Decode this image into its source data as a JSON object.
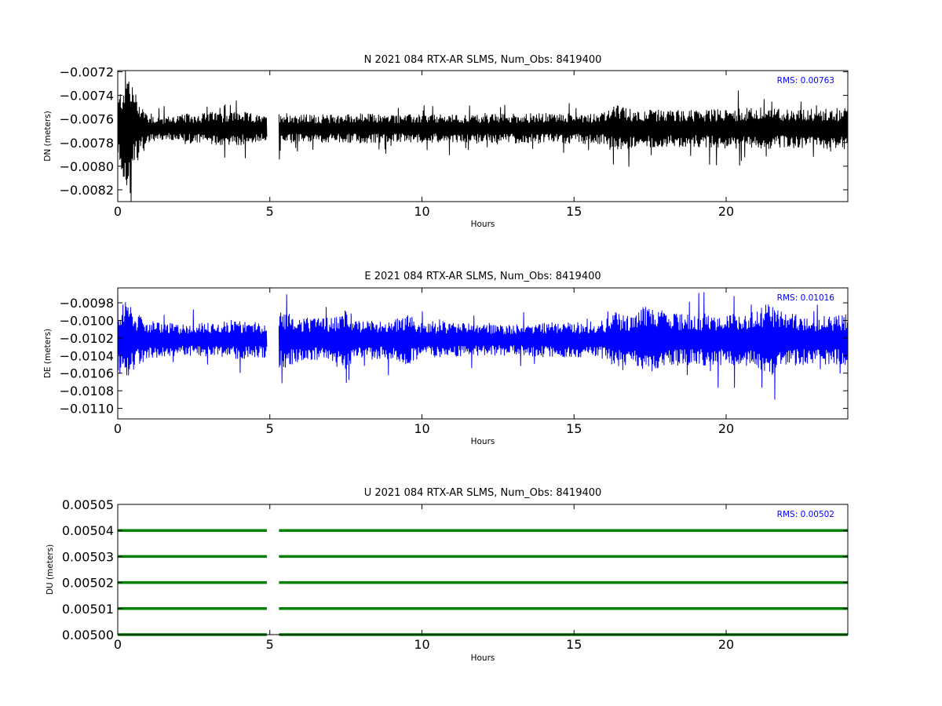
{
  "chart_data": [
    {
      "type": "line",
      "title": "N 2021 084 RTX-AR  SLMS, Num_Obs: 8419400",
      "xlabel": "Hours",
      "ylabel": "DN (meters)",
      "xlim": [
        0,
        24
      ],
      "ylim": [
        -0.0083,
        -0.00719
      ],
      "xticks": [
        0,
        5,
        10,
        15,
        20
      ],
      "yticks": [
        -0.0082,
        -0.008,
        -0.0078,
        -0.0076,
        -0.0074,
        -0.0072
      ],
      "ytick_labels": [
        "−0.0082",
        "−0.0080",
        "−0.0078",
        "−0.0076",
        "−0.0074",
        "−0.0072"
      ],
      "color": "#000000",
      "annotation": "RMS:  0.00763",
      "annotation_color": "#0000ff",
      "data_gap_hours": [
        4.9,
        5.3
      ],
      "series": [
        {
          "x": [
            0,
            0.3,
            0.6,
            1,
            1.5,
            2,
            3,
            4,
            4.9,
            5.3,
            6,
            7,
            8,
            9,
            10,
            11,
            12,
            13,
            14,
            15,
            16,
            16.4,
            17,
            18,
            19,
            20,
            21,
            22,
            23,
            24
          ],
          "mean": [
            -0.00768,
            -0.00768,
            -0.00768,
            -0.00768,
            -0.00768,
            -0.00768,
            -0.00768,
            -0.00768,
            -0.00768,
            -0.00768,
            -0.00768,
            -0.00768,
            -0.00768,
            -0.00768,
            -0.00768,
            -0.00768,
            -0.00768,
            -0.00768,
            -0.00768,
            -0.00768,
            -0.00768,
            -0.00768,
            -0.00768,
            -0.00768,
            -0.00768,
            -0.00768,
            -0.00768,
            -0.00768,
            -0.00768,
            -0.00768
          ],
          "amplitude": [
            0.00025,
            0.00055,
            0.0003,
            0.00012,
            0.0001,
            0.00012,
            0.00014,
            0.00015,
            0.0001,
            0.00015,
            0.00012,
            0.00012,
            0.00013,
            0.00012,
            0.00012,
            0.00012,
            0.00012,
            0.00013,
            0.00013,
            0.00013,
            0.00014,
            0.0002,
            0.00016,
            0.00016,
            0.00016,
            0.00017,
            0.00018,
            0.00017,
            0.00017,
            0.00018
          ]
        }
      ]
    },
    {
      "type": "line",
      "title": "E 2021 084 RTX-AR  SLMS, Num_Obs: 8419400",
      "xlabel": "Hours",
      "ylabel": "DE (meters)",
      "xlim": [
        0,
        24
      ],
      "ylim": [
        -0.01112,
        -0.00963
      ],
      "xticks": [
        0,
        5,
        10,
        15,
        20
      ],
      "yticks": [
        -0.011,
        -0.0108,
        -0.0106,
        -0.0104,
        -0.0102,
        -0.01,
        -0.0098
      ],
      "ytick_labels": [
        "−0.0110",
        "−0.0108",
        "−0.0106",
        "−0.0104",
        "−0.0102",
        "−0.0100",
        "−0.0098"
      ],
      "color": "#0000ff",
      "annotation": "RMS:  0.01016",
      "annotation_color": "#0000ff",
      "data_gap_hours": [
        4.9,
        5.3
      ],
      "series": [
        {
          "x": [
            0,
            0.3,
            0.6,
            1,
            1.5,
            2,
            3,
            4,
            4.9,
            5.3,
            6,
            7,
            7.5,
            8,
            9,
            9.5,
            10,
            11,
            12,
            13,
            14,
            15,
            16,
            16.3,
            17,
            17.3,
            18,
            19,
            20,
            21,
            21.3,
            22,
            23,
            24
          ],
          "mean": [
            -0.01022,
            -0.01022,
            -0.01022,
            -0.01022,
            -0.01022,
            -0.01022,
            -0.01022,
            -0.01022,
            -0.01022,
            -0.01022,
            -0.01022,
            -0.01022,
            -0.01022,
            -0.01022,
            -0.01022,
            -0.01022,
            -0.01022,
            -0.01022,
            -0.01022,
            -0.01022,
            -0.01022,
            -0.01022,
            -0.01022,
            -0.01022,
            -0.01022,
            -0.01022,
            -0.01022,
            -0.01022,
            -0.01022,
            -0.01022,
            -0.01022,
            -0.01022,
            -0.01022,
            -0.01022
          ],
          "amplitude": [
            0.0004,
            0.00045,
            0.0003,
            0.00022,
            0.0002,
            0.00018,
            0.0002,
            0.00022,
            0.0002,
            0.00035,
            0.00025,
            0.00025,
            0.00035,
            0.00022,
            0.00022,
            0.0003,
            0.0002,
            0.0002,
            0.00018,
            0.00018,
            0.0002,
            0.0002,
            0.00022,
            0.00032,
            0.00028,
            0.0004,
            0.0003,
            0.0003,
            0.0003,
            0.00032,
            0.00045,
            0.0003,
            0.00028,
            0.0003
          ]
        }
      ]
    },
    {
      "type": "scatter",
      "title": "U 2021 084 RTX-AR  SLMS, Num_Obs: 8419400",
      "xlabel": "Hours",
      "ylabel": "DU (meters)",
      "xlim": [
        0,
        24
      ],
      "ylim": [
        0.005,
        0.00505
      ],
      "xticks": [
        0,
        5,
        10,
        15,
        20
      ],
      "yticks": [
        0.005,
        0.00501,
        0.00502,
        0.00503,
        0.00504,
        0.00505
      ],
      "ytick_labels": [
        "0.00500",
        "0.00501",
        "0.00502",
        "0.00503",
        "0.00504",
        "0.00505"
      ],
      "color": "#008000",
      "annotation": "RMS:  0.00502",
      "annotation_color": "#0000ff",
      "data_gap_hours": [
        4.9,
        5.3
      ],
      "series": [
        {
          "levels": [
            0.005,
            0.00501,
            0.00502,
            0.00503,
            0.00504
          ],
          "x_range": [
            0,
            24
          ]
        }
      ]
    }
  ]
}
